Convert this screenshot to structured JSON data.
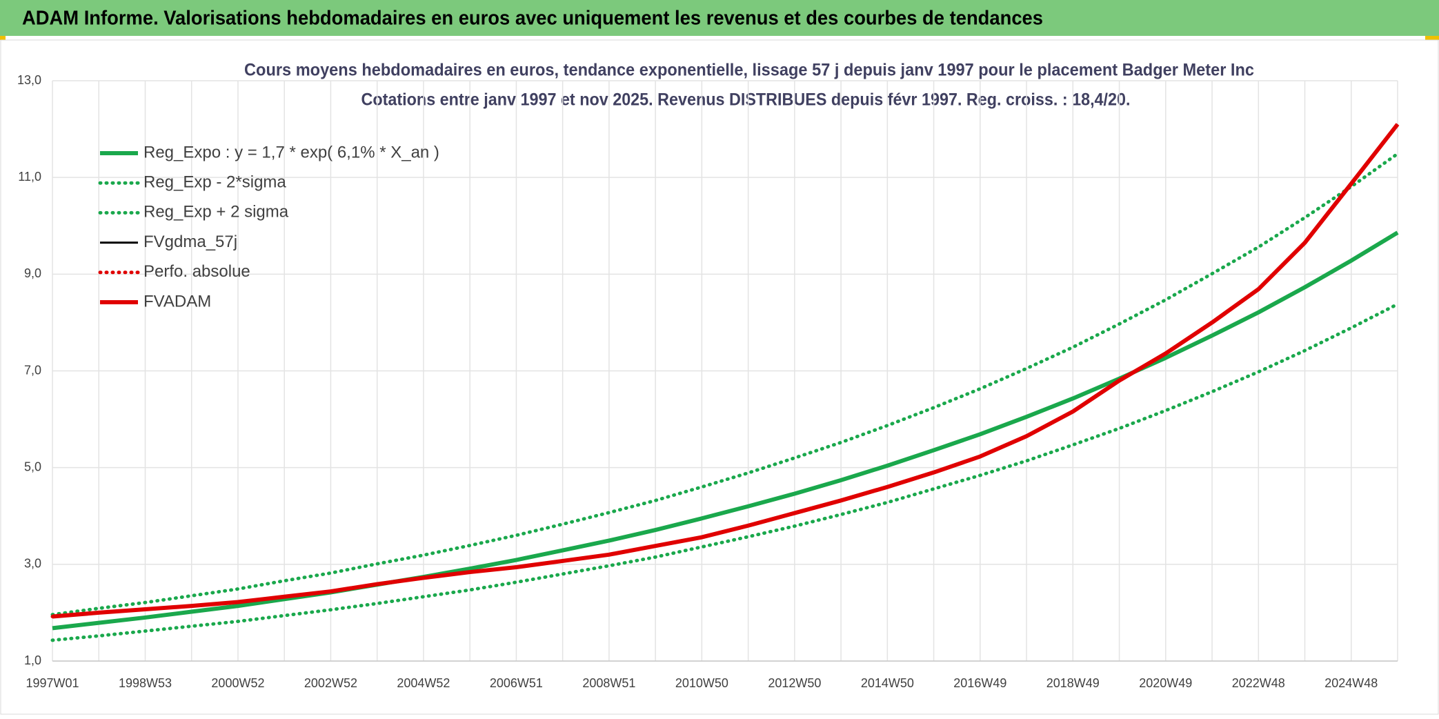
{
  "header": {
    "title": "ADAM Informe. Valorisations hebdomadaires en euros avec uniquement les revenus et des courbes de tendances"
  },
  "chart_data": {
    "type": "line",
    "title": "Cours moyens hebdomadaires en euros, tendance exponentielle, lissage 57 j depuis janv 1997 pour le placement Badger Meter Inc",
    "subtitle": "Cotations entre janv 1997 et nov 2025. Revenus DISTRIBUES depuis févr 1997. Reg. croiss. : 18,4/20.",
    "categories": [
      "1997W01",
      null,
      "1998W53",
      null,
      "2000W52",
      null,
      "2002W52",
      null,
      "2004W52",
      null,
      "2006W51",
      null,
      "2008W51",
      null,
      "2010W50",
      null,
      "2012W50",
      null,
      "2014W50",
      null,
      "2016W49",
      null,
      "2018W49",
      null,
      "2020W49",
      null,
      "2022W48",
      null,
      "2024W48",
      null
    ],
    "ylim": [
      1.0,
      13.0
    ],
    "yticks": [
      {
        "value": 1.0,
        "label": "1,0"
      },
      {
        "value": 3.0,
        "label": "3,0"
      },
      {
        "value": 5.0,
        "label": "5,0"
      },
      {
        "value": 7.0,
        "label": "7,0"
      },
      {
        "value": 9.0,
        "label": "9,0"
      },
      {
        "value": 11.0,
        "label": "11,0"
      },
      {
        "value": 13.0,
        "label": "13,0"
      }
    ],
    "grid": true,
    "legend": "top-left",
    "series": [
      {
        "name": "Reg_Expo : y = 1,7 * exp( 6,1% *  X_an )",
        "color": "#1aa84c",
        "style": "solid",
        "values": [
          1.68,
          1.79,
          1.9,
          2.02,
          2.14,
          2.28,
          2.42,
          2.58,
          2.74,
          2.91,
          3.09,
          3.29,
          3.49,
          3.71,
          3.95,
          4.2,
          4.46,
          4.74,
          5.04,
          5.36,
          5.69,
          6.05,
          6.43,
          6.84,
          7.27,
          7.73,
          8.21,
          8.73,
          9.28,
          9.86
        ]
      },
      {
        "name": "Reg_Exp - 2*sigma",
        "color": "#1aa84c",
        "style": "dotted",
        "values": [
          1.43,
          1.52,
          1.62,
          1.72,
          1.82,
          1.94,
          2.06,
          2.19,
          2.33,
          2.47,
          2.63,
          2.8,
          2.97,
          3.15,
          3.36,
          3.57,
          3.79,
          4.03,
          4.28,
          4.56,
          4.84,
          5.14,
          5.47,
          5.81,
          6.18,
          6.57,
          6.98,
          7.42,
          7.89,
          8.38
        ]
      },
      {
        "name": "Reg_Exp + 2 sigma",
        "color": "#1aa84c",
        "style": "dotted",
        "values": [
          1.96,
          2.09,
          2.21,
          2.35,
          2.49,
          2.66,
          2.82,
          3.01,
          3.19,
          3.39,
          3.6,
          3.83,
          4.07,
          4.32,
          4.6,
          4.89,
          5.2,
          5.52,
          5.87,
          6.24,
          6.63,
          7.05,
          7.49,
          7.97,
          8.47,
          9.01,
          9.56,
          10.17,
          10.81,
          11.49
        ]
      },
      {
        "name": "FVgdma_57j",
        "color": "#000000",
        "style": "thin",
        "values": [
          1.92,
          2.0,
          2.07,
          2.14,
          2.22,
          2.33,
          2.44,
          2.59,
          2.72,
          2.84,
          2.94,
          3.07,
          3.2,
          3.38,
          3.56,
          3.8,
          4.06,
          4.32,
          4.6,
          4.9,
          5.23,
          5.65,
          6.16,
          6.8,
          7.36,
          8.0,
          8.69,
          9.65,
          10.87,
          12.1
        ]
      },
      {
        "name": "Perfo. absolue",
        "color": "#e00000",
        "style": "dotted",
        "values": [
          1.92,
          2.0,
          2.07,
          2.14,
          2.22,
          2.33,
          2.44,
          2.59,
          2.72,
          2.84,
          2.94,
          3.07,
          3.2,
          3.38,
          3.56,
          3.8,
          4.06,
          4.32,
          4.6,
          4.9,
          5.23,
          5.65,
          6.16,
          6.8,
          7.36,
          8.0,
          8.69,
          9.65,
          10.87,
          12.1
        ]
      },
      {
        "name": "FVADAM",
        "color": "#e00000",
        "style": "solid",
        "values": [
          1.92,
          2.0,
          2.07,
          2.14,
          2.22,
          2.33,
          2.44,
          2.59,
          2.72,
          2.84,
          2.94,
          3.07,
          3.2,
          3.38,
          3.56,
          3.8,
          4.06,
          4.32,
          4.6,
          4.9,
          5.23,
          5.65,
          6.16,
          6.8,
          7.36,
          8.0,
          8.69,
          9.65,
          10.87,
          12.1
        ]
      }
    ]
  }
}
